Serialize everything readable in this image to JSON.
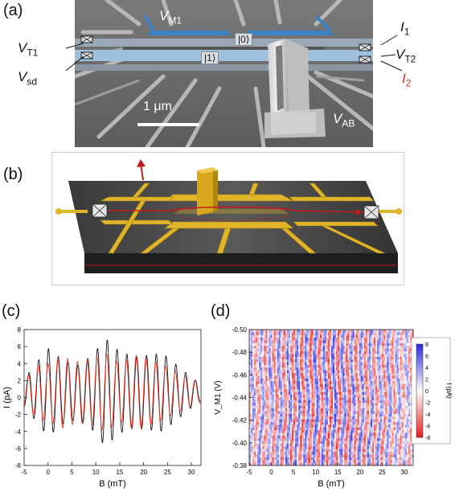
{
  "figure": {
    "panels": {
      "a": "(a)",
      "b": "(b)",
      "c": "(c)",
      "d": "(d)"
    },
    "panel_a": {
      "labels": {
        "vm1_main": "V",
        "vm1_sub": "M1",
        "vt1_main": "V",
        "vt1_sub": "T1",
        "vsd_main": "V",
        "vsd_sub": "sd",
        "i1_main": "I",
        "i1_sub": "1",
        "vt2_main": "V",
        "vt2_sub": "T2",
        "i2_main": "I",
        "i2_sub": "2",
        "vab_main": "V",
        "vab_sub": "AB",
        "state0": "|0⟩",
        "state1": "|1⟩",
        "scalebar": "1 μm"
      },
      "colors": {
        "gate_blue": "#3f7fc4",
        "channel_blue": "#9fc1de",
        "red_label": "#d42a2a",
        "sem_bg": "#6f6f6f"
      }
    },
    "panel_b": {
      "colors": {
        "gold": "#e1b52a",
        "chip": "#2c2c2c",
        "arrow_red": "#c31b1b"
      }
    }
  },
  "chart_data": [
    {
      "type": "line",
      "panel": "c",
      "xlabel": "B (mT)",
      "ylabel": "I (pA)",
      "xlim": [
        -5,
        32
      ],
      "ylim": [
        -8,
        8
      ],
      "xticks": [
        -5,
        0,
        5,
        10,
        15,
        20,
        25,
        30
      ],
      "yticks": [
        -8,
        -6,
        -4,
        -2,
        0,
        2,
        4,
        6,
        8
      ],
      "series": [
        {
          "color": "#111111",
          "model": {
            "offset": 0.6,
            "period": 2.05,
            "phase": 0.1,
            "amplitude_profile": [
              [
                -5,
                1.6
              ],
              [
                -2,
                3.8
              ],
              [
                0,
                5.2
              ],
              [
                3,
                3.8
              ],
              [
                6,
                3.2
              ],
              [
                9,
                4.2
              ],
              [
                12,
                6.4
              ],
              [
                15,
                4.8
              ],
              [
                18,
                4.2
              ],
              [
                21,
                4.4
              ],
              [
                24,
                4.6
              ],
              [
                27,
                3.2
              ],
              [
                30,
                1.8
              ],
              [
                32,
                1.0
              ]
            ]
          }
        },
        {
          "color": "#e23b2b",
          "model": {
            "offset": 0.6,
            "period": 2.05,
            "phase": 0.0,
            "amplitude_profile": [
              [
                -5,
                1.6
              ],
              [
                -2,
                3.2
              ],
              [
                0,
                3.4
              ],
              [
                3,
                4.2
              ],
              [
                6,
                3.6
              ],
              [
                9,
                3.8
              ],
              [
                12,
                4.6
              ],
              [
                15,
                3.4
              ],
              [
                18,
                4.4
              ],
              [
                21,
                4.0
              ],
              [
                24,
                3.2
              ],
              [
                27,
                2.4
              ],
              [
                30,
                1.6
              ],
              [
                32,
                1.2
              ]
            ]
          }
        }
      ]
    },
    {
      "type": "heatmap",
      "panel": "d",
      "xlabel": "B (mT)",
      "ylabel": "V_M1 (V)",
      "xlim": [
        -5,
        32
      ],
      "ylim": [
        -0.5,
        -0.38
      ],
      "xticks": [
        -5,
        0,
        5,
        10,
        15,
        20,
        25,
        30
      ],
      "yticks": [
        -0.5,
        -0.48,
        -0.46,
        -0.44,
        -0.42,
        -0.4,
        -0.38
      ],
      "ytick_labels": [
        "-0.50",
        "-0.48",
        "-0.46",
        "-0.44",
        "-0.42",
        "-0.40",
        "-0.38"
      ],
      "colorbar": {
        "label": "I (pA)",
        "min": -8,
        "max": 8,
        "ticks": [
          8,
          6,
          4,
          2,
          0,
          -2,
          -4,
          -6,
          -8
        ]
      },
      "model": {
        "fringe_period_mT": 2.05,
        "amplitude_pA": 5.5,
        "noise": 0.4
      }
    }
  ]
}
